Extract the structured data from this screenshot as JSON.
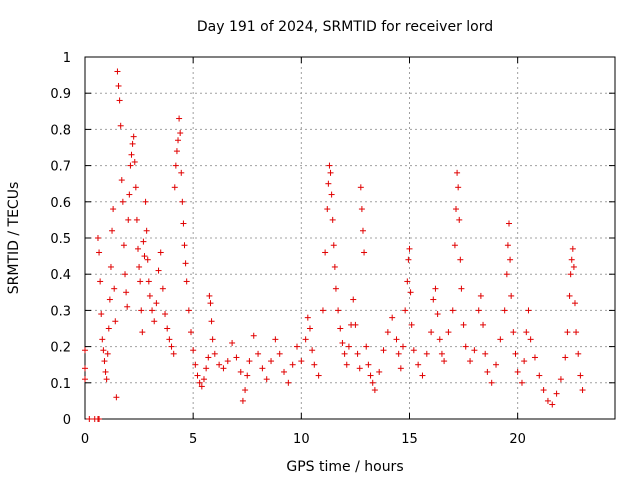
{
  "chart_data": {
    "type": "scatter",
    "title": "Day 191 of 2024, SRMTID for receiver lord",
    "xlabel": "GPS time / hours",
    "ylabel": "SRMTID / TECUs",
    "xlim": [
      0,
      24.5
    ],
    "ylim": [
      0,
      1
    ],
    "xticks": [
      0,
      5,
      10,
      15,
      20
    ],
    "yticks": [
      0,
      0.1,
      0.2,
      0.3,
      0.4,
      0.5,
      0.6,
      0.7,
      0.8,
      0.9,
      1
    ],
    "grid": true,
    "marker": "+",
    "color": "#e00000",
    "series": [
      {
        "name": "SRMTID",
        "points": [
          [
            0.0,
            0.19
          ],
          [
            0.0,
            0.14
          ],
          [
            0.0,
            0.11
          ],
          [
            0.2,
            0.0
          ],
          [
            0.45,
            0.0
          ],
          [
            0.6,
            0.0
          ],
          [
            0.65,
            0.0
          ],
          [
            0.6,
            0.5
          ],
          [
            0.65,
            0.46
          ],
          [
            0.7,
            0.38
          ],
          [
            0.75,
            0.29
          ],
          [
            0.8,
            0.22
          ],
          [
            0.85,
            0.19
          ],
          [
            0.9,
            0.16
          ],
          [
            0.95,
            0.13
          ],
          [
            1.0,
            0.11
          ],
          [
            1.05,
            0.18
          ],
          [
            1.1,
            0.25
          ],
          [
            1.15,
            0.33
          ],
          [
            1.2,
            0.42
          ],
          [
            1.25,
            0.52
          ],
          [
            1.3,
            0.58
          ],
          [
            1.35,
            0.36
          ],
          [
            1.4,
            0.27
          ],
          [
            1.45,
            0.06
          ],
          [
            1.5,
            0.96
          ],
          [
            1.55,
            0.92
          ],
          [
            1.6,
            0.88
          ],
          [
            1.65,
            0.81
          ],
          [
            1.7,
            0.66
          ],
          [
            1.75,
            0.6
          ],
          [
            1.8,
            0.48
          ],
          [
            1.85,
            0.4
          ],
          [
            1.9,
            0.35
          ],
          [
            1.95,
            0.31
          ],
          [
            2.0,
            0.55
          ],
          [
            2.05,
            0.62
          ],
          [
            2.1,
            0.7
          ],
          [
            2.15,
            0.73
          ],
          [
            2.2,
            0.76
          ],
          [
            2.25,
            0.78
          ],
          [
            2.3,
            0.71
          ],
          [
            2.35,
            0.64
          ],
          [
            2.4,
            0.55
          ],
          [
            2.45,
            0.47
          ],
          [
            2.5,
            0.42
          ],
          [
            2.55,
            0.38
          ],
          [
            2.6,
            0.3
          ],
          [
            2.65,
            0.24
          ],
          [
            2.7,
            0.49
          ],
          [
            2.75,
            0.45
          ],
          [
            2.8,
            0.6
          ],
          [
            2.85,
            0.52
          ],
          [
            2.9,
            0.44
          ],
          [
            2.95,
            0.38
          ],
          [
            3.0,
            0.34
          ],
          [
            3.1,
            0.3
          ],
          [
            3.2,
            0.27
          ],
          [
            3.3,
            0.32
          ],
          [
            3.4,
            0.41
          ],
          [
            3.5,
            0.46
          ],
          [
            3.6,
            0.36
          ],
          [
            3.7,
            0.29
          ],
          [
            3.8,
            0.25
          ],
          [
            3.9,
            0.22
          ],
          [
            4.0,
            0.2
          ],
          [
            4.1,
            0.18
          ],
          [
            4.15,
            0.64
          ],
          [
            4.2,
            0.7
          ],
          [
            4.25,
            0.74
          ],
          [
            4.3,
            0.77
          ],
          [
            4.35,
            0.83
          ],
          [
            4.4,
            0.79
          ],
          [
            4.45,
            0.68
          ],
          [
            4.5,
            0.6
          ],
          [
            4.55,
            0.54
          ],
          [
            4.6,
            0.48
          ],
          [
            4.65,
            0.43
          ],
          [
            4.7,
            0.38
          ],
          [
            4.8,
            0.3
          ],
          [
            4.9,
            0.24
          ],
          [
            5.0,
            0.19
          ],
          [
            5.1,
            0.15
          ],
          [
            5.2,
            0.12
          ],
          [
            5.3,
            0.1
          ],
          [
            5.4,
            0.09
          ],
          [
            5.5,
            0.11
          ],
          [
            5.6,
            0.14
          ],
          [
            5.7,
            0.17
          ],
          [
            5.75,
            0.34
          ],
          [
            5.8,
            0.32
          ],
          [
            5.85,
            0.27
          ],
          [
            5.9,
            0.22
          ],
          [
            6.0,
            0.18
          ],
          [
            6.2,
            0.15
          ],
          [
            6.4,
            0.14
          ],
          [
            6.6,
            0.16
          ],
          [
            6.8,
            0.21
          ],
          [
            7.0,
            0.17
          ],
          [
            7.2,
            0.13
          ],
          [
            7.3,
            0.05
          ],
          [
            7.4,
            0.08
          ],
          [
            7.5,
            0.12
          ],
          [
            7.6,
            0.16
          ],
          [
            7.8,
            0.23
          ],
          [
            8.0,
            0.18
          ],
          [
            8.2,
            0.14
          ],
          [
            8.4,
            0.11
          ],
          [
            8.6,
            0.16
          ],
          [
            8.8,
            0.22
          ],
          [
            9.0,
            0.18
          ],
          [
            9.2,
            0.13
          ],
          [
            9.4,
            0.1
          ],
          [
            9.6,
            0.15
          ],
          [
            9.8,
            0.2
          ],
          [
            10.0,
            0.16
          ],
          [
            10.2,
            0.22
          ],
          [
            10.3,
            0.28
          ],
          [
            10.4,
            0.25
          ],
          [
            10.5,
            0.19
          ],
          [
            10.6,
            0.15
          ],
          [
            10.8,
            0.12
          ],
          [
            11.0,
            0.3
          ],
          [
            11.1,
            0.46
          ],
          [
            11.2,
            0.58
          ],
          [
            11.25,
            0.65
          ],
          [
            11.3,
            0.7
          ],
          [
            11.35,
            0.68
          ],
          [
            11.4,
            0.62
          ],
          [
            11.45,
            0.55
          ],
          [
            11.5,
            0.48
          ],
          [
            11.55,
            0.42
          ],
          [
            11.6,
            0.36
          ],
          [
            11.7,
            0.3
          ],
          [
            11.8,
            0.25
          ],
          [
            11.9,
            0.21
          ],
          [
            12.0,
            0.18
          ],
          [
            12.1,
            0.15
          ],
          [
            12.2,
            0.2
          ],
          [
            12.3,
            0.26
          ],
          [
            12.4,
            0.33
          ],
          [
            12.5,
            0.26
          ],
          [
            12.6,
            0.18
          ],
          [
            12.7,
            0.14
          ],
          [
            12.75,
            0.64
          ],
          [
            12.8,
            0.58
          ],
          [
            12.85,
            0.52
          ],
          [
            12.9,
            0.46
          ],
          [
            13.0,
            0.2
          ],
          [
            13.1,
            0.15
          ],
          [
            13.2,
            0.12
          ],
          [
            13.3,
            0.1
          ],
          [
            13.4,
            0.08
          ],
          [
            13.6,
            0.13
          ],
          [
            13.8,
            0.19
          ],
          [
            14.0,
            0.24
          ],
          [
            14.2,
            0.28
          ],
          [
            14.4,
            0.22
          ],
          [
            14.5,
            0.18
          ],
          [
            14.6,
            0.14
          ],
          [
            14.7,
            0.2
          ],
          [
            14.8,
            0.3
          ],
          [
            14.9,
            0.38
          ],
          [
            14.95,
            0.44
          ],
          [
            15.0,
            0.47
          ],
          [
            15.05,
            0.35
          ],
          [
            15.1,
            0.26
          ],
          [
            15.2,
            0.19
          ],
          [
            15.4,
            0.15
          ],
          [
            15.6,
            0.12
          ],
          [
            15.8,
            0.18
          ],
          [
            16.0,
            0.24
          ],
          [
            16.1,
            0.33
          ],
          [
            16.2,
            0.36
          ],
          [
            16.3,
            0.29
          ],
          [
            16.4,
            0.22
          ],
          [
            16.5,
            0.18
          ],
          [
            16.6,
            0.16
          ],
          [
            16.8,
            0.24
          ],
          [
            17.0,
            0.3
          ],
          [
            17.1,
            0.48
          ],
          [
            17.15,
            0.58
          ],
          [
            17.2,
            0.68
          ],
          [
            17.25,
            0.64
          ],
          [
            17.3,
            0.55
          ],
          [
            17.35,
            0.44
          ],
          [
            17.4,
            0.36
          ],
          [
            17.5,
            0.26
          ],
          [
            17.6,
            0.2
          ],
          [
            17.8,
            0.16
          ],
          [
            18.0,
            0.19
          ],
          [
            18.2,
            0.3
          ],
          [
            18.3,
            0.34
          ],
          [
            18.4,
            0.26
          ],
          [
            18.5,
            0.18
          ],
          [
            18.6,
            0.13
          ],
          [
            18.8,
            0.1
          ],
          [
            19.0,
            0.15
          ],
          [
            19.2,
            0.22
          ],
          [
            19.4,
            0.3
          ],
          [
            19.5,
            0.4
          ],
          [
            19.55,
            0.48
          ],
          [
            19.6,
            0.54
          ],
          [
            19.65,
            0.44
          ],
          [
            19.7,
            0.34
          ],
          [
            19.8,
            0.24
          ],
          [
            19.9,
            0.18
          ],
          [
            20.0,
            0.13
          ],
          [
            20.2,
            0.1
          ],
          [
            20.3,
            0.16
          ],
          [
            20.4,
            0.24
          ],
          [
            20.5,
            0.3
          ],
          [
            20.6,
            0.22
          ],
          [
            20.8,
            0.17
          ],
          [
            21.0,
            0.12
          ],
          [
            21.2,
            0.08
          ],
          [
            21.4,
            0.05
          ],
          [
            21.6,
            0.04
          ],
          [
            21.8,
            0.07
          ],
          [
            22.0,
            0.11
          ],
          [
            22.2,
            0.17
          ],
          [
            22.3,
            0.24
          ],
          [
            22.4,
            0.34
          ],
          [
            22.45,
            0.4
          ],
          [
            22.5,
            0.44
          ],
          [
            22.55,
            0.47
          ],
          [
            22.6,
            0.42
          ],
          [
            22.65,
            0.32
          ],
          [
            22.7,
            0.24
          ],
          [
            22.8,
            0.18
          ],
          [
            22.9,
            0.12
          ],
          [
            23.0,
            0.08
          ]
        ]
      }
    ]
  }
}
